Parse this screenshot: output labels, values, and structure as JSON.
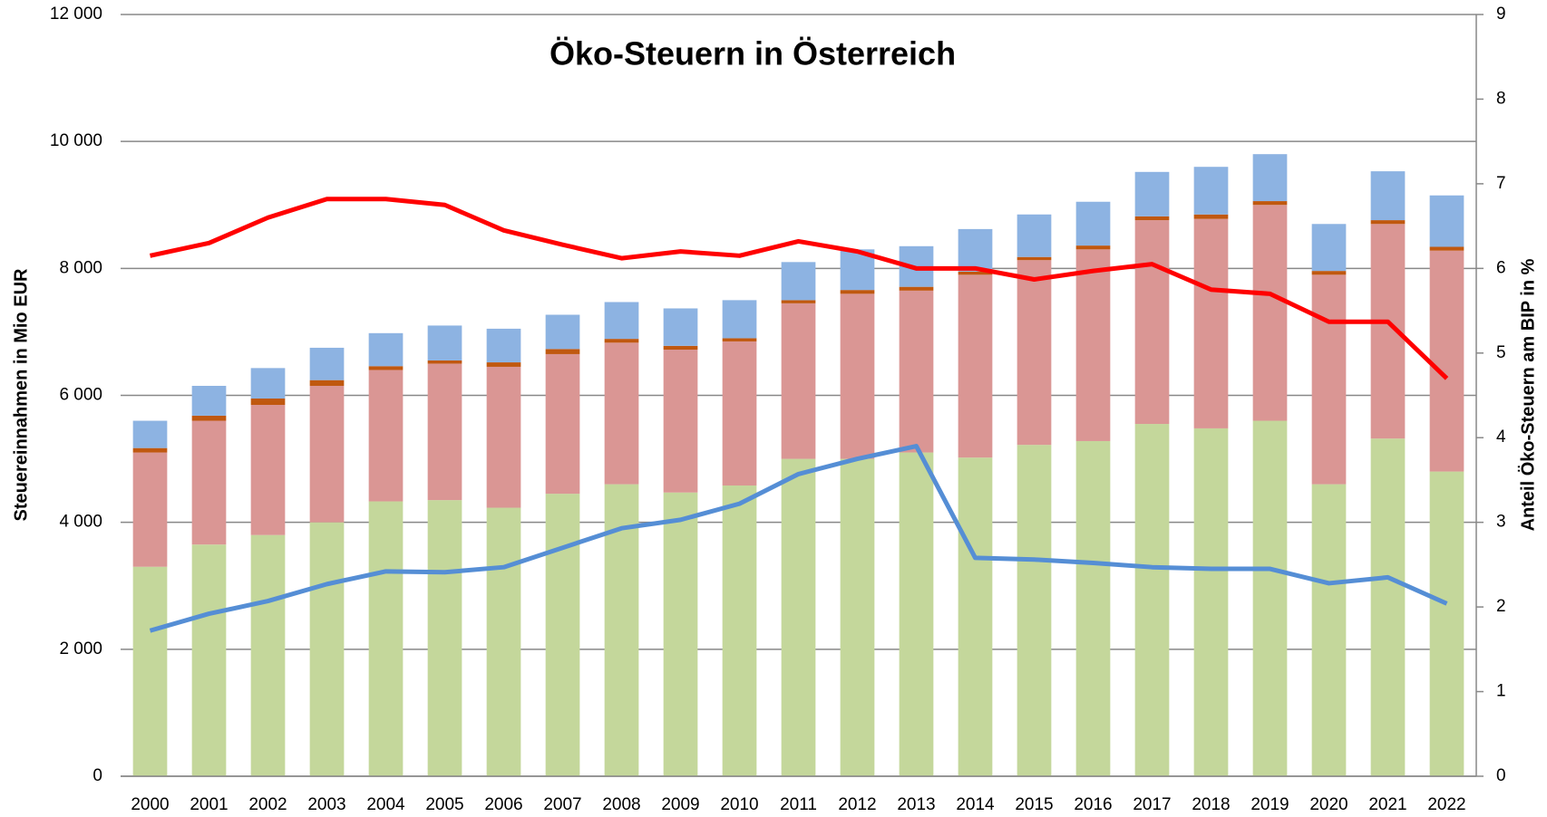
{
  "chart_data": {
    "type": "bar",
    "stacked": true,
    "title": "Öko-Steuern in Österreich",
    "y_label": "Steuereinnahmen in Mio EUR",
    "y2_label": "Anteil Öko-Steuern am BIP  in %",
    "categories": [
      "2000",
      "2001",
      "2002",
      "2003",
      "2004",
      "2005",
      "2006",
      "2007",
      "2008",
      "2009",
      "2010",
      "2011",
      "2012",
      "2013",
      "2014",
      "2015",
      "2016",
      "2017",
      "2018",
      "2019",
      "2020",
      "2021",
      "2022"
    ],
    "series": [
      {
        "type": "bar",
        "color": "#c4d79b",
        "values": [
          3300,
          3650,
          3800,
          4000,
          4330,
          4350,
          4230,
          4450,
          4600,
          4470,
          4580,
          5000,
          5000,
          5100,
          5020,
          5220,
          5280,
          5550,
          5480,
          5600,
          4600,
          5320,
          4800
        ]
      },
      {
        "type": "bar",
        "color": "#da9694",
        "values": [
          1800,
          1950,
          2050,
          2150,
          2070,
          2150,
          2220,
          2200,
          2230,
          2250,
          2270,
          2450,
          2600,
          2550,
          2880,
          2910,
          3020,
          3210,
          3300,
          3400,
          3300,
          3380,
          3480
        ]
      },
      {
        "type": "bar",
        "color": "#c0580f",
        "values": [
          70,
          80,
          100,
          90,
          60,
          50,
          70,
          80,
          60,
          60,
          50,
          50,
          60,
          60,
          50,
          50,
          60,
          60,
          70,
          60,
          60,
          60,
          60
        ]
      },
      {
        "type": "bar",
        "color": "#8db3e2",
        "values": [
          430,
          470,
          480,
          510,
          520,
          550,
          530,
          540,
          580,
          590,
          600,
          600,
          640,
          640,
          670,
          670,
          690,
          700,
          750,
          740,
          740,
          770,
          810
        ]
      },
      {
        "type": "line",
        "axis": "y2",
        "color": "#ff0000",
        "values": [
          6.15,
          6.3,
          6.6,
          6.82,
          6.82,
          6.75,
          6.45,
          6.28,
          6.12,
          6.2,
          6.15,
          6.32,
          6.2,
          6.0,
          6.0,
          5.87,
          5.97,
          6.05,
          5.75,
          5.7,
          5.37,
          5.37,
          4.7
        ]
      },
      {
        "type": "line",
        "axis": "y2",
        "color": "#558ed5",
        "values": [
          1.72,
          1.92,
          2.07,
          2.27,
          2.42,
          2.41,
          2.47,
          2.7,
          2.93,
          3.03,
          3.22,
          3.57,
          3.75,
          3.9,
          2.58,
          2.56,
          2.52,
          2.47,
          2.45,
          2.45,
          2.28,
          2.35,
          2.04
        ]
      }
    ],
    "ylim": [
      0,
      12000
    ],
    "yticks": [
      {
        "value": 0,
        "label": "0"
      },
      {
        "value": 2000,
        "label": "2 000"
      },
      {
        "value": 4000,
        "label": "4 000"
      },
      {
        "value": 6000,
        "label": "6 000"
      },
      {
        "value": 8000,
        "label": "8 000"
      },
      {
        "value": 10000,
        "label": "10 000"
      },
      {
        "value": 12000,
        "label": "12 000"
      }
    ],
    "y2lim": [
      0,
      9
    ],
    "y2ticks": [
      0,
      1,
      2,
      3,
      4,
      5,
      6,
      7,
      8,
      9
    ],
    "grid": true
  }
}
